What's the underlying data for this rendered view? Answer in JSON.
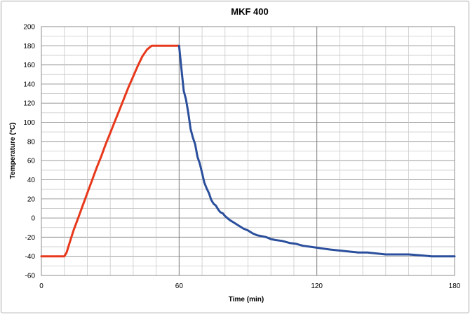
{
  "chart_data": {
    "type": "line",
    "title": "MKF 400",
    "xlabel": "Time (min)",
    "ylabel": "Temperature (°C)",
    "xlim": [
      0,
      180
    ],
    "ylim": [
      -60,
      200
    ],
    "x_ticks": [
      0,
      60,
      120,
      180
    ],
    "y_ticks": [
      -60,
      -40,
      -20,
      0,
      20,
      40,
      60,
      80,
      100,
      120,
      140,
      160,
      180,
      200
    ],
    "grid": true,
    "legend": "none",
    "series": [
      {
        "color": "#e8381b",
        "points": [
          [
            0,
            -40
          ],
          [
            10,
            -40
          ],
          [
            11,
            -36
          ],
          [
            12,
            -28
          ],
          [
            14,
            -13
          ],
          [
            16,
            0
          ],
          [
            18,
            13
          ],
          [
            20,
            26
          ],
          [
            22,
            39
          ],
          [
            24,
            52
          ],
          [
            26,
            64
          ],
          [
            28,
            77
          ],
          [
            30,
            89
          ],
          [
            32,
            101
          ],
          [
            34,
            113
          ],
          [
            36,
            125
          ],
          [
            38,
            137
          ],
          [
            40,
            148
          ],
          [
            42,
            159
          ],
          [
            44,
            169
          ],
          [
            46,
            176
          ],
          [
            48,
            180
          ],
          [
            60,
            180
          ]
        ]
      },
      {
        "color": "#2b4f9c",
        "points": [
          [
            60,
            180
          ],
          [
            61,
            156
          ],
          [
            62,
            133
          ],
          [
            63,
            124
          ],
          [
            64,
            110
          ],
          [
            65,
            93
          ],
          [
            66,
            84
          ],
          [
            67,
            77
          ],
          [
            68,
            64
          ],
          [
            69,
            57
          ],
          [
            70,
            47
          ],
          [
            71,
            37
          ],
          [
            72,
            31
          ],
          [
            73,
            26
          ],
          [
            74,
            19
          ],
          [
            75,
            15
          ],
          [
            76,
            13
          ],
          [
            77,
            9
          ],
          [
            78,
            6
          ],
          [
            79,
            5
          ],
          [
            80,
            2
          ],
          [
            82,
            -2
          ],
          [
            84,
            -5
          ],
          [
            86,
            -8
          ],
          [
            88,
            -11
          ],
          [
            90,
            -13
          ],
          [
            92,
            -16
          ],
          [
            94,
            -18
          ],
          [
            96,
            -19
          ],
          [
            98,
            -20
          ],
          [
            100,
            -22
          ],
          [
            102,
            -23
          ],
          [
            105,
            -24
          ],
          [
            108,
            -26
          ],
          [
            111,
            -27
          ],
          [
            114,
            -29
          ],
          [
            117,
            -30
          ],
          [
            120,
            -31
          ],
          [
            123,
            -32
          ],
          [
            126,
            -33
          ],
          [
            130,
            -34
          ],
          [
            134,
            -35
          ],
          [
            138,
            -36
          ],
          [
            142,
            -36
          ],
          [
            146,
            -37
          ],
          [
            150,
            -38
          ],
          [
            155,
            -38
          ],
          [
            160,
            -38
          ],
          [
            165,
            -39
          ],
          [
            170,
            -40
          ],
          [
            175,
            -40
          ],
          [
            180,
            -40
          ]
        ]
      }
    ]
  }
}
